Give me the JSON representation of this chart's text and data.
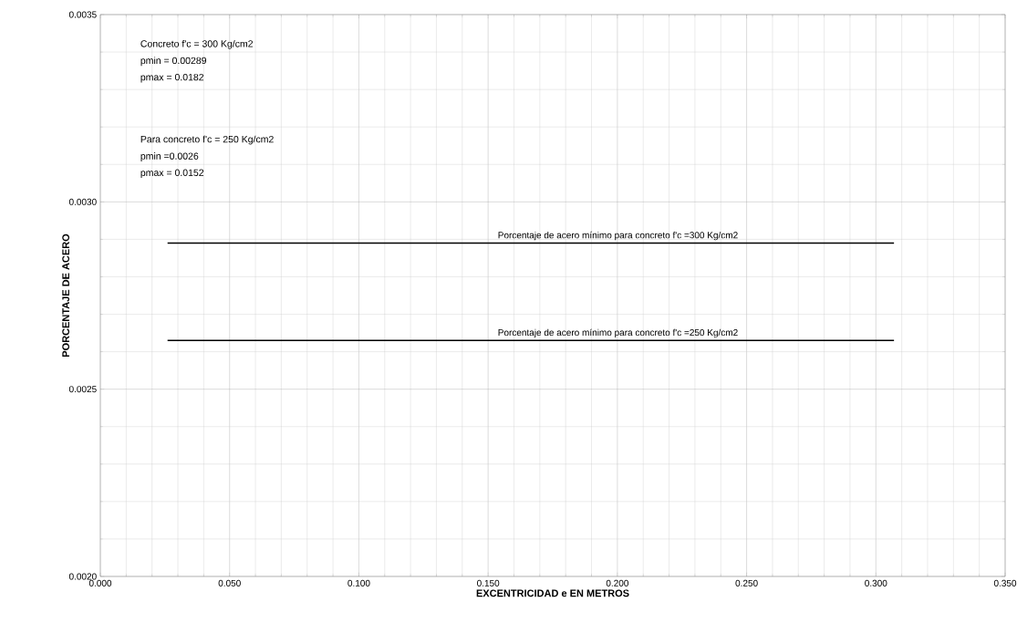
{
  "chart_data": {
    "type": "line",
    "xlabel": "EXCENTRICIDAD  e  EN METROS",
    "ylabel": "PORCENTAJE DE ACERO",
    "xlim": [
      0,
      0.35
    ],
    "ylim": [
      0.002,
      0.0035
    ],
    "xticks": [
      {
        "value": 0,
        "label": "0.000"
      },
      {
        "value": 0.05,
        "label": "0.050"
      },
      {
        "value": 0.1,
        "label": "0.100"
      },
      {
        "value": 0.15,
        "label": "0.150"
      },
      {
        "value": 0.2,
        "label": "0.200"
      },
      {
        "value": 0.25,
        "label": "0.250"
      },
      {
        "value": 0.3,
        "label": "0.300"
      },
      {
        "value": 0.35,
        "label": "0.350"
      }
    ],
    "yticks": [
      {
        "value": 0.002,
        "label": "0.0020"
      },
      {
        "value": 0.0025,
        "label": "0.0025"
      },
      {
        "value": 0.003,
        "label": "0.0030"
      },
      {
        "value": 0.0035,
        "label": "0.0035"
      }
    ],
    "x": [
      0.026,
      0.307
    ],
    "grid": true,
    "marker": "none",
    "line_style": "solid",
    "series": [
      {
        "name": "Porcentaje de acero mínimo para concreto f'c =300 Kg/cm2",
        "color": "#000000",
        "values": [
          0.00289,
          0.00289
        ]
      },
      {
        "name": "Porcentaje de acero mínimo para concreto f'c =250 Kg/cm2",
        "color": "#000000",
        "values": [
          0.00263,
          0.00263
        ]
      }
    ],
    "annotations": [
      "Concreto  f'c  = 300 Kg/cm2",
      "pmin = 0.00289",
      "pmax = 0.0182",
      "Para concreto  f'c = 250 Kg/cm2",
      "pmin =0.0026",
      "pmax = 0.0152"
    ]
  }
}
